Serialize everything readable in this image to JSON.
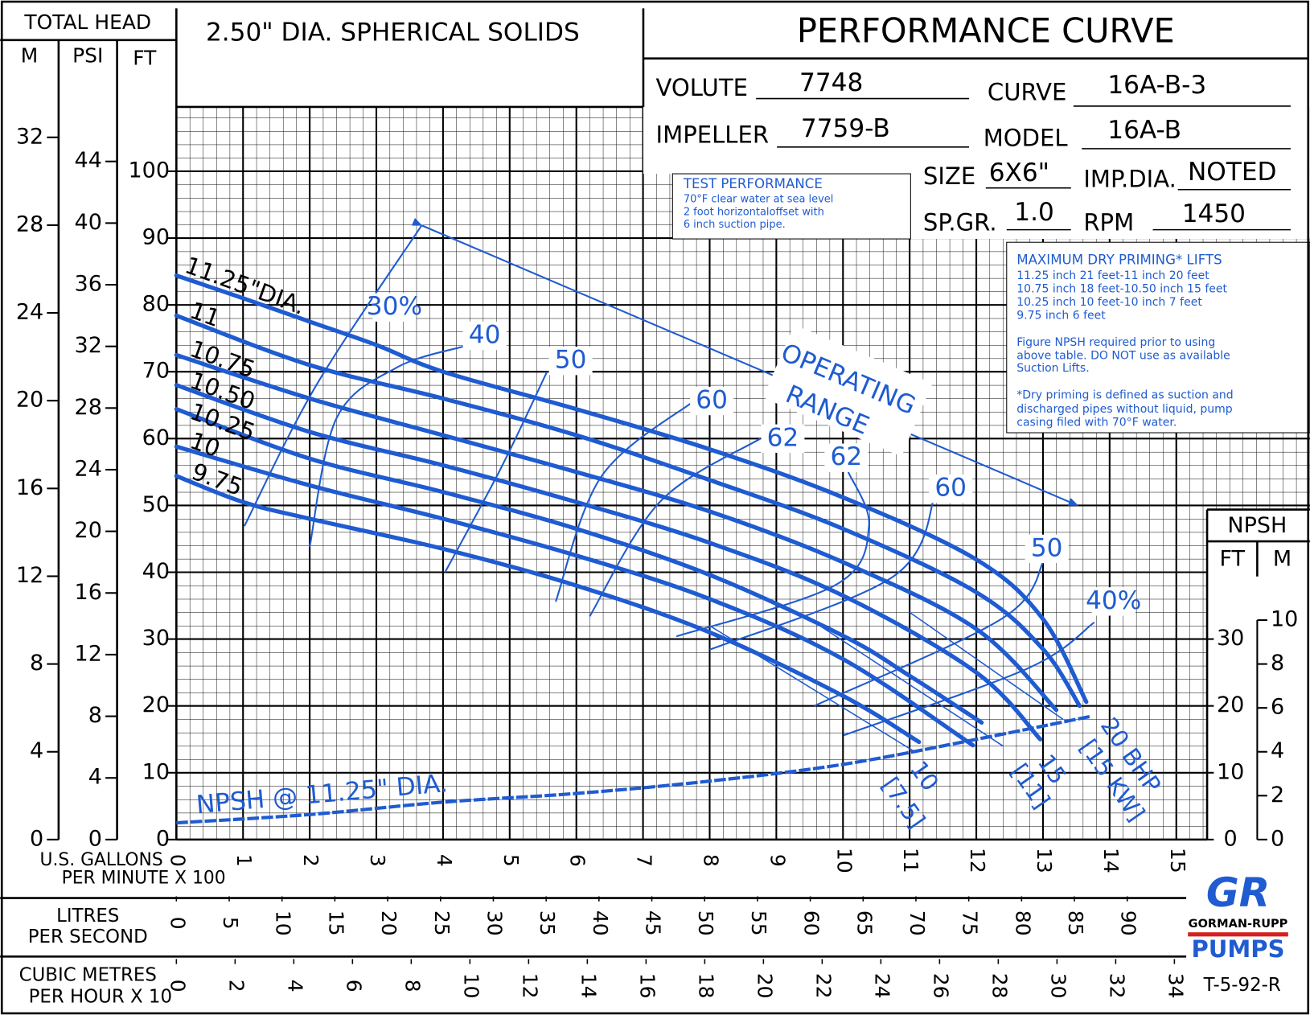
{
  "header": {
    "volute_label": "VOLUTE",
    "volute": "7748",
    "curve_label": "CURVE",
    "curve": "16A-B-3",
    "impeller_label": "IMPELLER",
    "impeller": "7759-B",
    "model_label": "MODEL",
    "model": "16A-B",
    "size_label": "SIZE",
    "size": "6X6\"",
    "imp_dia_label": "IMP.DIA.",
    "imp_dia": "NOTED",
    "sp_gr_label": "SP.GR.",
    "sp_gr": "1.0",
    "rpm_label": "RPM",
    "rpm": "1450",
    "test_performance": [
      "TEST PERFORMANCE",
      "70°F clear water at sea level",
      "2 foot horizontaloffset with",
      "6 inch suction pipe."
    ],
    "priming": [
      "MAXIMUM DRY PRIMING* LIFTS",
      "11.25 inch 21 feet-11 inch 20 feet",
      "10.75 inch 18 feet-10.50 inch 15 feet",
      "10.25 inch 10 feet-10 inch 7 feet",
      "9.75 inch 6 feet",
      "Figure NPSH required prior to using",
      "above table. DO NOT use as available",
      "Suction Lifts.",
      "*Dry priming is defined as suction and",
      "discharged pipes without liquid, pump",
      "casing filed with 70°F water."
    ],
    "drawing_no": "T-5-92-R",
    "logo": {
      "mark": "GR",
      "name": "GORMAN-RUPP",
      "pumps": "PUMPS"
    }
  },
  "chart_data": {
    "type": "line",
    "title": "PERFORMANCE CURVE",
    "subtitle": "2.50\" DIA. SPHERICAL SOLIDS",
    "y_axis_title": "TOTAL HEAD",
    "x_label": [
      "U.S. GALLONS",
      "PER MINUTE X 100"
    ],
    "xlim": [
      0,
      15.5
    ],
    "xticks": [
      0,
      1,
      2,
      3,
      4,
      5,
      6,
      7,
      8,
      9,
      10,
      11,
      12,
      13,
      14,
      15
    ],
    "y_label": "FT",
    "ylim": [
      0,
      110
    ],
    "yticks": [
      0,
      10,
      20,
      30,
      40,
      50,
      60,
      70,
      80,
      90,
      100
    ],
    "psi_axis": {
      "label": "PSI",
      "lim": [
        0,
        47.7
      ],
      "ticks": [
        0,
        4,
        8,
        12,
        16,
        20,
        24,
        28,
        32,
        36,
        40,
        44
      ]
    },
    "m_axis": {
      "label": "M",
      "lim": [
        0,
        33.5
      ],
      "ticks": [
        0,
        4,
        8,
        12,
        16,
        20,
        24,
        28,
        32
      ]
    },
    "lps_axis": {
      "label": [
        "LITRES",
        "PER SECOND"
      ],
      "lim": [
        0,
        97.8
      ],
      "ticks": [
        0,
        5,
        10,
        15,
        20,
        25,
        30,
        35,
        40,
        45,
        50,
        55,
        60,
        65,
        70,
        75,
        80,
        85,
        90
      ]
    },
    "m3h_axis": {
      "label": [
        "CUBIC METRES",
        "PER HOUR X 10"
      ],
      "lim": [
        0,
        35.2
      ],
      "ticks": [
        0,
        2,
        4,
        6,
        8,
        10,
        12,
        14,
        16,
        18,
        20,
        22,
        24,
        26,
        28,
        30,
        32,
        34
      ]
    },
    "npsh_axis": {
      "title": "NPSH",
      "ft_label": "FT",
      "ft_ticks": [
        0,
        10,
        20,
        30
      ],
      "m_label": "M",
      "m_lim": [
        0,
        33.5
      ],
      "m_ticks": [
        0,
        2,
        4,
        6,
        8,
        10
      ]
    },
    "grid": true,
    "series": [
      {
        "name": "11.25\"DIA.",
        "color": "#1f5bd1",
        "x": [
          0,
          1,
          2,
          3,
          4,
          6,
          8,
          10,
          12,
          13,
          13.65
        ],
        "values": [
          84.4,
          81,
          77.5,
          74,
          70,
          64.4,
          58.4,
          51.2,
          41.9,
          33,
          20.6
        ]
      },
      {
        "name": "11",
        "color": "#1f5bd1",
        "x": [
          0,
          2,
          4,
          6,
          8,
          10,
          12,
          13,
          13.55
        ],
        "values": [
          78.4,
          71,
          66,
          60.5,
          53.8,
          46.5,
          37,
          28.5,
          20
        ]
      },
      {
        "name": "10.75",
        "color": "#1f5bd1",
        "x": [
          0,
          2,
          4,
          6,
          8,
          10,
          12,
          13.2
        ],
        "values": [
          72.5,
          66,
          60.5,
          55,
          49.1,
          41.5,
          31.5,
          19.4
        ]
      },
      {
        "name": "10.50",
        "color": "#1f5bd1",
        "x": [
          0,
          2,
          4,
          6,
          8,
          10,
          12,
          12.96
        ],
        "values": [
          68,
          61,
          56,
          50.5,
          44.4,
          36.5,
          25,
          15
        ]
      },
      {
        "name": "10.25",
        "color": "#1f5bd1",
        "x": [
          0,
          2,
          4,
          6,
          8,
          10,
          11,
          12.08
        ],
        "values": [
          64.4,
          57,
          52,
          46.5,
          39.6,
          30.5,
          24.5,
          17.5
        ]
      },
      {
        "name": "10",
        "color": "#1f5bd1",
        "x": [
          0,
          2,
          4,
          6,
          8,
          10,
          11.95
        ],
        "values": [
          58.8,
          53,
          48,
          42.5,
          36,
          27,
          14.1
        ]
      },
      {
        "name": "9.75",
        "color": "#1f5bd1",
        "x": [
          0,
          1,
          2,
          4,
          6,
          8,
          10,
          11.14
        ],
        "values": [
          54.4,
          50.5,
          48,
          43.5,
          38,
          31,
          21.5,
          14.6
        ]
      }
    ],
    "efficiency_curves": [
      {
        "label": "30%",
        "x": [
          1.02,
          2.1,
          3.68
        ],
        "values": [
          46.9,
          68,
          91.9
        ]
      },
      {
        "label": "40",
        "x": [
          2,
          2.4,
          3.3,
          4.31
        ],
        "values": [
          43.8,
          63,
          70.6,
          73.8
        ]
      },
      {
        "label": "50",
        "x": [
          4.03,
          4.87,
          5.56
        ],
        "values": [
          40,
          55.6,
          70
        ]
      },
      {
        "label": "60",
        "x": [
          5.69,
          6.38,
          7.76
        ],
        "values": [
          35.6,
          54.4,
          65.6
        ]
      },
      {
        "label": "62",
        "x": [
          6.2,
          7.26,
          8.76
        ],
        "values": [
          33.4,
          50.6,
          60
        ]
      },
      {
        "label": "62",
        "x": [
          7.5,
          9.89,
          10.39,
          10.08
        ],
        "values": [
          30.4,
          38.1,
          46.9,
          55
        ]
      },
      {
        "label": "60",
        "x": [
          8,
          10.76,
          11.39
        ],
        "values": [
          28.4,
          39.4,
          51.9
        ]
      },
      {
        "label": "50",
        "x": [
          9.57,
          12.39,
          13.02
        ],
        "values": [
          20,
          33.1,
          41.9
        ]
      },
      {
        "label": "40%",
        "x": [
          10.01,
          12.77,
          13.77
        ],
        "values": [
          15.6,
          25.6,
          32.5
        ]
      }
    ],
    "bhp_lines": [
      {
        "label": "10",
        "sublabel": "[7.5]",
        "x": [
          8,
          11.1
        ],
        "values": [
          32,
          13
        ]
      },
      {
        "label": "15",
        "sublabel": "[11]",
        "x": [
          9.5,
          12.4
        ],
        "values": [
          33,
          14
        ]
      },
      {
        "label": "20 BHP",
        "sublabel": "[15 KW]",
        "x": [
          11,
          13.3
        ],
        "values": [
          34,
          18
        ]
      }
    ],
    "npsh": {
      "name": "NPSH @ 11.25\" DIA.",
      "x": [
        0,
        2,
        4,
        6,
        8,
        10,
        12,
        13.7
      ],
      "values": [
        2.5,
        3.75,
        5.6,
        6.9,
        8.75,
        11.25,
        15,
        18.4
      ]
    },
    "operating_range": {
      "label": [
        "OPERATING",
        "RANGE"
      ],
      "x": [
        3.68,
        13.52
      ],
      "values": [
        91.9,
        50
      ]
    }
  }
}
